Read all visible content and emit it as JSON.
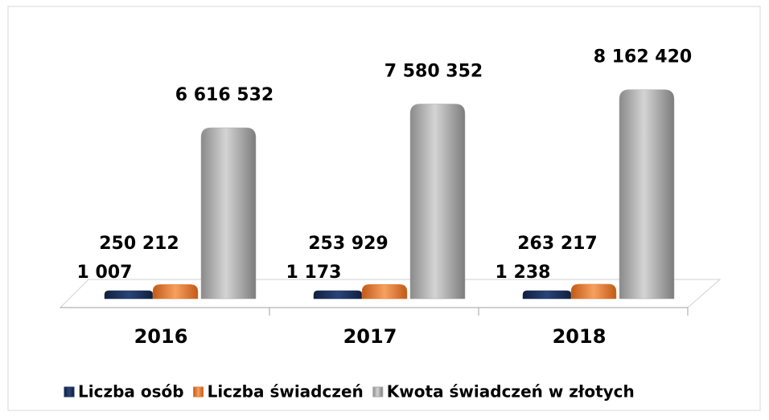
{
  "chart_data": {
    "type": "bar3d",
    "categories": [
      "2016",
      "2017",
      "2018"
    ],
    "series": [
      {
        "name": "Liczba osób",
        "color": "#1f3561",
        "values": [
          1007,
          1173,
          1238
        ],
        "value_labels": [
          "1 007",
          "1 173",
          "1 238"
        ]
      },
      {
        "name": "Liczba świadczeń",
        "color": "#e8742a",
        "values": [
          250212,
          253929,
          263217
        ],
        "value_labels": [
          "250 212",
          "253 929",
          "263 217"
        ]
      },
      {
        "name": "Kwota świadczeń w złotych",
        "color": "#a6a6a6",
        "values": [
          6616532,
          7580352,
          8162420
        ],
        "value_labels": [
          "6 616 532",
          "7 580 352",
          "8 162 420"
        ]
      }
    ],
    "ylim": [
      0,
      9000000
    ],
    "legend": "bottom"
  }
}
